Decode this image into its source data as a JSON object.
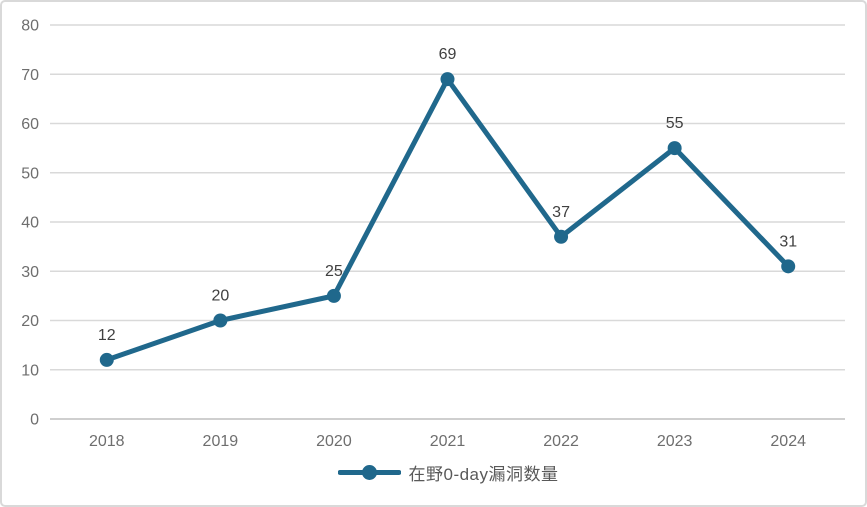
{
  "chart": {
    "legend_label": "在野0-day漏洞数量",
    "colors": {
      "line": "#20688C",
      "grid": "#d9d9d9",
      "axis": "#bfbfbf",
      "tick_label": "#6e6e6e",
      "data_label": "#404040",
      "legend_text": "#595959",
      "frame_border": "#d9d9d9",
      "background": "#ffffff"
    }
  },
  "chart_data": {
    "type": "line",
    "title": "",
    "xlabel": "",
    "ylabel": "",
    "categories": [
      "2018",
      "2019",
      "2020",
      "2021",
      "2022",
      "2023",
      "2024"
    ],
    "series": [
      {
        "name": "在野0-day漏洞数量",
        "values": [
          12,
          20,
          25,
          69,
          37,
          55,
          31
        ]
      }
    ],
    "data_labels": [
      12,
      20,
      25,
      69,
      37,
      55,
      31
    ],
    "ylim": [
      0,
      80
    ],
    "yticks": [
      0,
      10,
      20,
      30,
      40,
      50,
      60,
      70,
      80
    ],
    "grid": true,
    "legend_position": "bottom",
    "marker": "circle"
  }
}
